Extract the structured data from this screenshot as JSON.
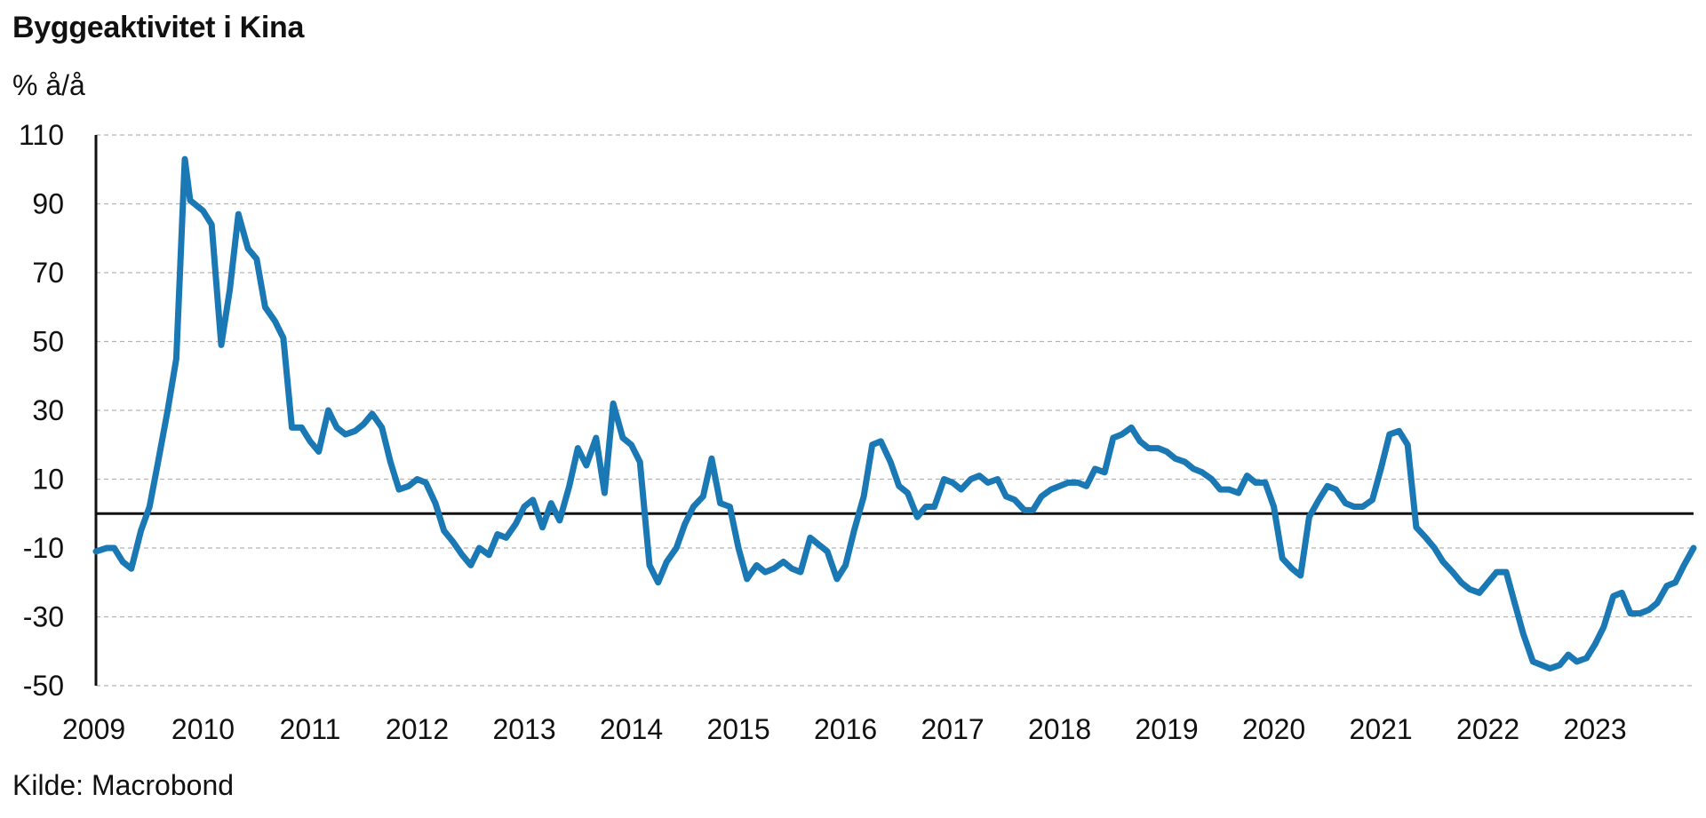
{
  "chart_data": {
    "type": "line",
    "title": "Byggeaktivitet i Kina",
    "ylabel": "% å/å",
    "xlabel": "",
    "source": "Kilde: Macrobond",
    "ylim": [
      -50,
      110
    ],
    "xlim": [
      2009.0,
      2023.92
    ],
    "y_ticks": [
      110,
      90,
      70,
      50,
      30,
      10,
      -10,
      -30,
      -50
    ],
    "x_ticks": [
      "2009",
      "2010",
      "2011",
      "2012",
      "2013",
      "2014",
      "2015",
      "2016",
      "2017",
      "2018",
      "2019",
      "2020",
      "2021",
      "2022",
      "2023"
    ],
    "grid": true,
    "zero_line": 0,
    "line_color": "#1a78b4",
    "series": [
      {
        "values": [
          [
            2009.0,
            -11
          ],
          [
            2009.1,
            -10
          ],
          [
            2009.17,
            -10
          ],
          [
            2009.25,
            -14
          ],
          [
            2009.33,
            -16
          ],
          [
            2009.42,
            -5
          ],
          [
            2009.5,
            2
          ],
          [
            2009.58,
            15
          ],
          [
            2009.67,
            30
          ],
          [
            2009.75,
            45
          ],
          [
            2009.83,
            103
          ],
          [
            2009.88,
            91
          ],
          [
            2009.92,
            90
          ],
          [
            2010.0,
            88
          ],
          [
            2010.08,
            84
          ],
          [
            2010.17,
            49
          ],
          [
            2010.25,
            65
          ],
          [
            2010.33,
            87
          ],
          [
            2010.42,
            77
          ],
          [
            2010.5,
            74
          ],
          [
            2010.58,
            60
          ],
          [
            2010.67,
            56
          ],
          [
            2010.75,
            51
          ],
          [
            2010.83,
            25
          ],
          [
            2010.92,
            25
          ],
          [
            2011.0,
            21
          ],
          [
            2011.08,
            18
          ],
          [
            2011.17,
            30
          ],
          [
            2011.25,
            25
          ],
          [
            2011.33,
            23
          ],
          [
            2011.42,
            24
          ],
          [
            2011.5,
            26
          ],
          [
            2011.58,
            29
          ],
          [
            2011.67,
            25
          ],
          [
            2011.75,
            15
          ],
          [
            2011.83,
            7
          ],
          [
            2011.92,
            8
          ],
          [
            2012.0,
            10
          ],
          [
            2012.08,
            9
          ],
          [
            2012.17,
            3
          ],
          [
            2012.25,
            -5
          ],
          [
            2012.33,
            -8
          ],
          [
            2012.42,
            -12
          ],
          [
            2012.5,
            -15
          ],
          [
            2012.58,
            -10
          ],
          [
            2012.67,
            -12
          ],
          [
            2012.75,
            -6
          ],
          [
            2012.83,
            -7
          ],
          [
            2012.92,
            -3
          ],
          [
            2013.0,
            2
          ],
          [
            2013.08,
            4
          ],
          [
            2013.17,
            -4
          ],
          [
            2013.25,
            3
          ],
          [
            2013.33,
            -2
          ],
          [
            2013.42,
            8
          ],
          [
            2013.5,
            19
          ],
          [
            2013.58,
            14
          ],
          [
            2013.67,
            22
          ],
          [
            2013.75,
            6
          ],
          [
            2013.83,
            32
          ],
          [
            2013.92,
            22
          ],
          [
            2014.0,
            20
          ],
          [
            2014.08,
            15
          ],
          [
            2014.17,
            -15
          ],
          [
            2014.25,
            -20
          ],
          [
            2014.33,
            -14
          ],
          [
            2014.42,
            -10
          ],
          [
            2014.5,
            -3
          ],
          [
            2014.58,
            2
          ],
          [
            2014.67,
            5
          ],
          [
            2014.75,
            16
          ],
          [
            2014.83,
            3
          ],
          [
            2014.92,
            2
          ],
          [
            2015.0,
            -10
          ],
          [
            2015.08,
            -19
          ],
          [
            2015.17,
            -15
          ],
          [
            2015.25,
            -17
          ],
          [
            2015.33,
            -16
          ],
          [
            2015.42,
            -14
          ],
          [
            2015.5,
            -16
          ],
          [
            2015.58,
            -17
          ],
          [
            2015.67,
            -7
          ],
          [
            2015.75,
            -9
          ],
          [
            2015.83,
            -11
          ],
          [
            2015.92,
            -19
          ],
          [
            2016.0,
            -15
          ],
          [
            2016.08,
            -5
          ],
          [
            2016.17,
            5
          ],
          [
            2016.25,
            20
          ],
          [
            2016.33,
            21
          ],
          [
            2016.42,
            15
          ],
          [
            2016.5,
            8
          ],
          [
            2016.58,
            6
          ],
          [
            2016.67,
            -1
          ],
          [
            2016.75,
            2
          ],
          [
            2016.83,
            2
          ],
          [
            2016.92,
            10
          ],
          [
            2017.0,
            9
          ],
          [
            2017.08,
            7
          ],
          [
            2017.17,
            10
          ],
          [
            2017.25,
            11
          ],
          [
            2017.33,
            9
          ],
          [
            2017.42,
            10
          ],
          [
            2017.5,
            5
          ],
          [
            2017.58,
            4
          ],
          [
            2017.67,
            1
          ],
          [
            2017.75,
            1
          ],
          [
            2017.83,
            5
          ],
          [
            2017.92,
            7
          ],
          [
            2018.0,
            8
          ],
          [
            2018.08,
            9
          ],
          [
            2018.17,
            9
          ],
          [
            2018.25,
            8
          ],
          [
            2018.33,
            13
          ],
          [
            2018.42,
            12
          ],
          [
            2018.5,
            22
          ],
          [
            2018.58,
            23
          ],
          [
            2018.67,
            25
          ],
          [
            2018.75,
            21
          ],
          [
            2018.83,
            19
          ],
          [
            2018.92,
            19
          ],
          [
            2019.0,
            18
          ],
          [
            2019.08,
            16
          ],
          [
            2019.17,
            15
          ],
          [
            2019.25,
            13
          ],
          [
            2019.33,
            12
          ],
          [
            2019.42,
            10
          ],
          [
            2019.5,
            7
          ],
          [
            2019.58,
            7
          ],
          [
            2019.67,
            6
          ],
          [
            2019.75,
            11
          ],
          [
            2019.83,
            9
          ],
          [
            2019.92,
            9
          ],
          [
            2020.0,
            2
          ],
          [
            2020.08,
            -13
          ],
          [
            2020.17,
            -16
          ],
          [
            2020.25,
            -18
          ],
          [
            2020.33,
            -1
          ],
          [
            2020.42,
            4
          ],
          [
            2020.5,
            8
          ],
          [
            2020.58,
            7
          ],
          [
            2020.67,
            3
          ],
          [
            2020.75,
            2
          ],
          [
            2020.83,
            2
          ],
          [
            2020.92,
            4
          ],
          [
            2021.0,
            13
          ],
          [
            2021.08,
            23
          ],
          [
            2021.17,
            24
          ],
          [
            2021.25,
            20
          ],
          [
            2021.33,
            -4
          ],
          [
            2021.42,
            -7
          ],
          [
            2021.5,
            -10
          ],
          [
            2021.58,
            -14
          ],
          [
            2021.67,
            -17
          ],
          [
            2021.75,
            -20
          ],
          [
            2021.83,
            -22
          ],
          [
            2021.92,
            -23
          ],
          [
            2022.0,
            -20
          ],
          [
            2022.08,
            -17
          ],
          [
            2022.17,
            -17
          ],
          [
            2022.25,
            -26
          ],
          [
            2022.33,
            -35
          ],
          [
            2022.42,
            -43
          ],
          [
            2022.5,
            -44
          ],
          [
            2022.58,
            -45
          ],
          [
            2022.67,
            -44
          ],
          [
            2022.75,
            -41
          ],
          [
            2022.83,
            -43
          ],
          [
            2022.92,
            -42
          ],
          [
            2023.0,
            -38
          ],
          [
            2023.08,
            -33
          ],
          [
            2023.17,
            -24
          ],
          [
            2023.25,
            -23
          ],
          [
            2023.33,
            -29
          ],
          [
            2023.42,
            -29
          ],
          [
            2023.5,
            -28
          ],
          [
            2023.58,
            -26
          ],
          [
            2023.67,
            -21
          ],
          [
            2023.75,
            -20
          ],
          [
            2023.83,
            -15
          ],
          [
            2023.92,
            -10
          ]
        ]
      }
    ]
  }
}
